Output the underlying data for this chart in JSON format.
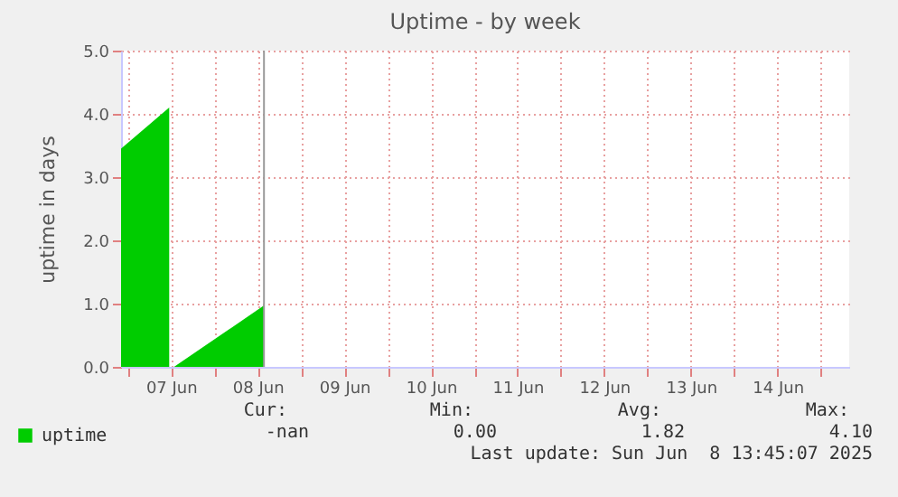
{
  "chart_data": {
    "type": "area",
    "title": "Uptime - by week",
    "ylabel": "uptime in days",
    "x": [
      "2025-06-06T22:10",
      "2025-06-07T11:30",
      "2025-06-07T12:10",
      "2025-06-07T12:50",
      "2025-06-08T13:45"
    ],
    "series": [
      {
        "name": "uptime",
        "color": "#00cc00",
        "values": [
          3.45,
          4.1,
          null,
          0,
          0.97
        ]
      }
    ],
    "xlim": [
      "2025-06-06T22:10",
      "2025-06-15T07:50"
    ],
    "xticks": [
      {
        "value": "2025-06-07T00:00",
        "label": null
      },
      {
        "value": "2025-06-07T12:00",
        "label": "07 Jun"
      },
      {
        "value": "2025-06-08T00:00",
        "label": null
      },
      {
        "value": "2025-06-08T12:00",
        "label": "08 Jun"
      },
      {
        "value": "2025-06-09T00:00",
        "label": null
      },
      {
        "value": "2025-06-09T12:00",
        "label": "09 Jun"
      },
      {
        "value": "2025-06-10T00:00",
        "label": null
      },
      {
        "value": "2025-06-10T12:00",
        "label": "10 Jun"
      },
      {
        "value": "2025-06-11T00:00",
        "label": null
      },
      {
        "value": "2025-06-11T12:00",
        "label": "11 Jun"
      },
      {
        "value": "2025-06-12T00:00",
        "label": null
      },
      {
        "value": "2025-06-12T12:00",
        "label": "12 Jun"
      },
      {
        "value": "2025-06-13T00:00",
        "label": null
      },
      {
        "value": "2025-06-13T12:00",
        "label": "13 Jun"
      },
      {
        "value": "2025-06-14T00:00",
        "label": null
      },
      {
        "value": "2025-06-14T12:00",
        "label": "14 Jun"
      },
      {
        "value": "2025-06-15T00:00",
        "label": null
      }
    ],
    "ylim": [
      0,
      5
    ],
    "yticks": [
      {
        "value": 0,
        "label": "0.0"
      },
      {
        "value": 1,
        "label": "1.0"
      },
      {
        "value": 2,
        "label": "2.0"
      },
      {
        "value": 3,
        "label": "3.0"
      },
      {
        "value": 4,
        "label": "4.0"
      },
      {
        "value": 5,
        "label": "5.0"
      }
    ],
    "ref_lines": [
      {
        "axis": "x",
        "value": "2025-06-08T13:45",
        "color": "#999999"
      }
    ],
    "grid": true,
    "legend": "bottom",
    "annotations": [
      "Cur:",
      "Min:",
      "Avg:",
      "Max:",
      "-nan",
      "0.00",
      "1.82",
      "4.10",
      "Last update: Sun Jun  8 13:45:07 2025"
    ]
  }
}
